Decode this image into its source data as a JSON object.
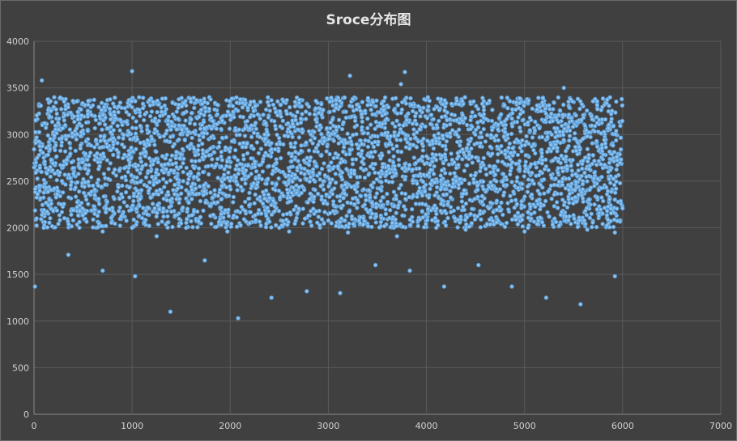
{
  "chart_data": {
    "type": "scatter",
    "title": "Sroce分布图",
    "xlabel": "",
    "ylabel": "",
    "xlim": [
      0,
      7000
    ],
    "ylim": [
      0,
      4000
    ],
    "xticks": [
      0,
      1000,
      2000,
      3000,
      4000,
      5000,
      6000,
      7000
    ],
    "yticks": [
      0,
      500,
      1000,
      1500,
      2000,
      2500,
      3000,
      3500,
      4000
    ],
    "grid": true,
    "legend": "none",
    "marker_color": "#5b9bd5",
    "series": [
      {
        "x_range": [
          0,
          6000
        ],
        "dense_band": [
          2000,
          3400
        ],
        "points": [
          [
            10,
            1370
          ],
          [
            80,
            3580
          ],
          [
            350,
            1710
          ],
          [
            700,
            1540
          ],
          [
            1000,
            3680
          ],
          [
            1030,
            1480
          ],
          [
            1390,
            1100
          ],
          [
            1740,
            1650
          ],
          [
            1970,
            1960
          ],
          [
            2080,
            1030
          ],
          [
            2420,
            1250
          ],
          [
            2780,
            1320
          ],
          [
            3120,
            1300
          ],
          [
            3220,
            3630
          ],
          [
            3480,
            1600
          ],
          [
            3740,
            3540
          ],
          [
            3780,
            3670
          ],
          [
            3830,
            1540
          ],
          [
            4180,
            1370
          ],
          [
            4530,
            1600
          ],
          [
            4870,
            1370
          ],
          [
            5220,
            1250
          ],
          [
            5400,
            3500
          ],
          [
            5570,
            1180
          ],
          [
            5920,
            1480
          ],
          [
            5920,
            1950
          ],
          [
            5640,
            1980
          ],
          [
            5000,
            1960
          ],
          [
            4400,
            1980
          ],
          [
            3700,
            1910
          ],
          [
            3200,
            1950
          ],
          [
            2600,
            1960
          ],
          [
            1250,
            1910
          ],
          [
            700,
            1960
          ],
          [
            100,
            2000
          ],
          [
            1000,
            2000
          ],
          [
            1550,
            2000
          ],
          [
            2500,
            2000
          ],
          [
            4100,
            2000
          ],
          [
            4800,
            2010
          ]
        ]
      }
    ]
  }
}
